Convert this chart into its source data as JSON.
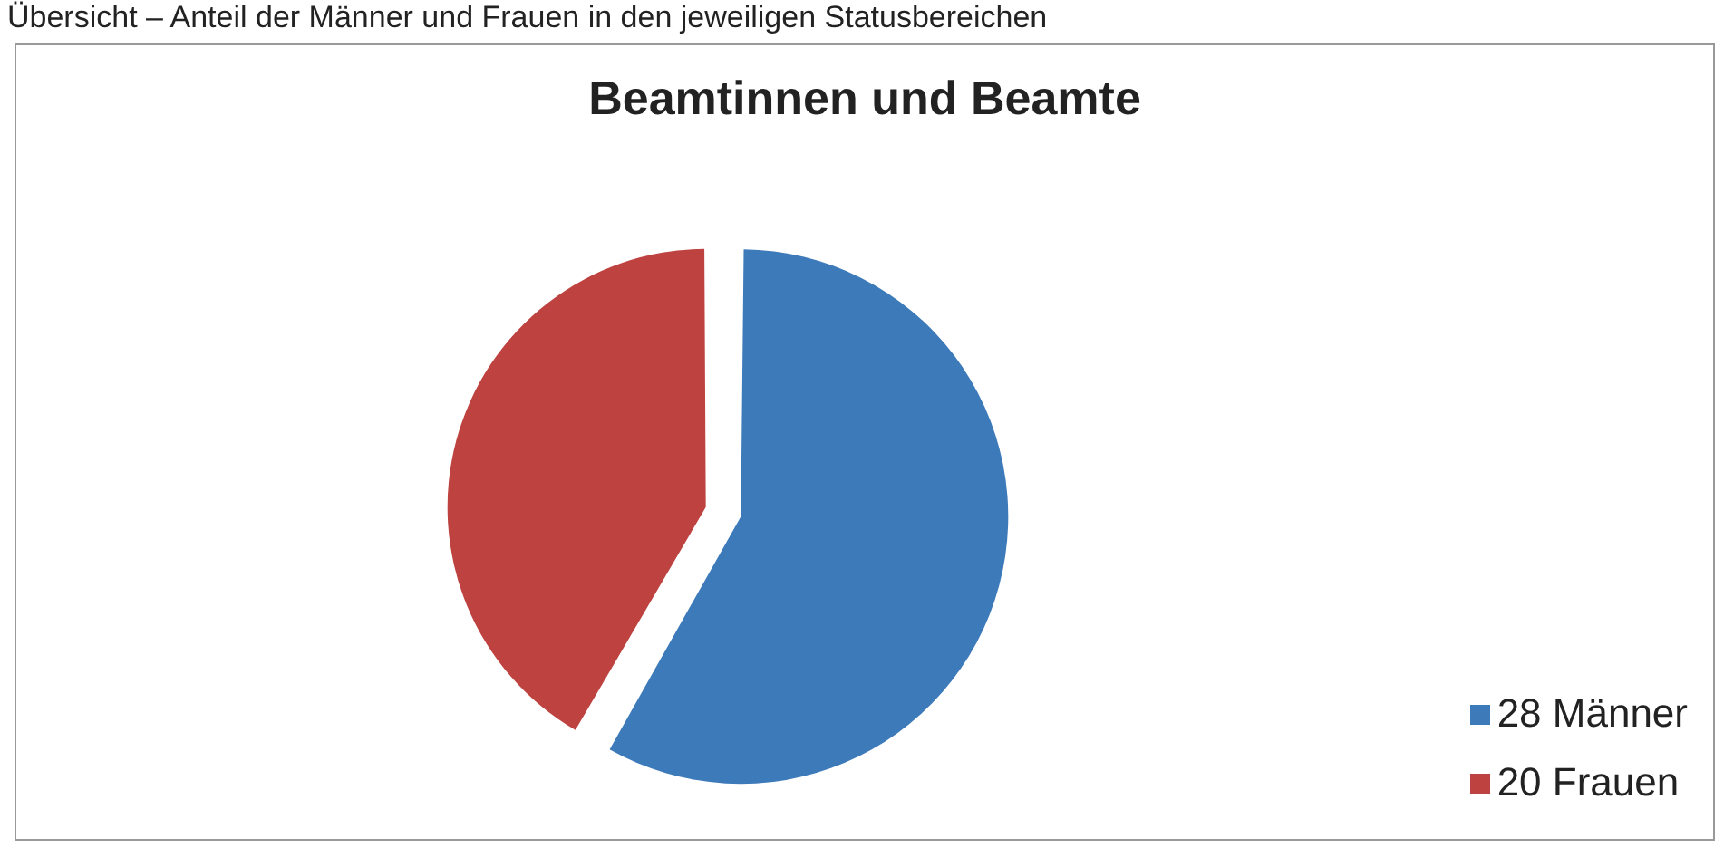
{
  "chart_data": {
    "type": "pie",
    "title": "Beamtinnen und Beamte",
    "annotations": [
      "Übersicht – Anteil der Männer und Frauen in den jeweiligen Statusbereichen"
    ],
    "categories": [
      "28 Männer",
      "20 Frauen"
    ],
    "values": [
      28,
      20
    ],
    "colors": [
      "#3d7ab9",
      "#be4340"
    ],
    "legend": "bottom right"
  }
}
